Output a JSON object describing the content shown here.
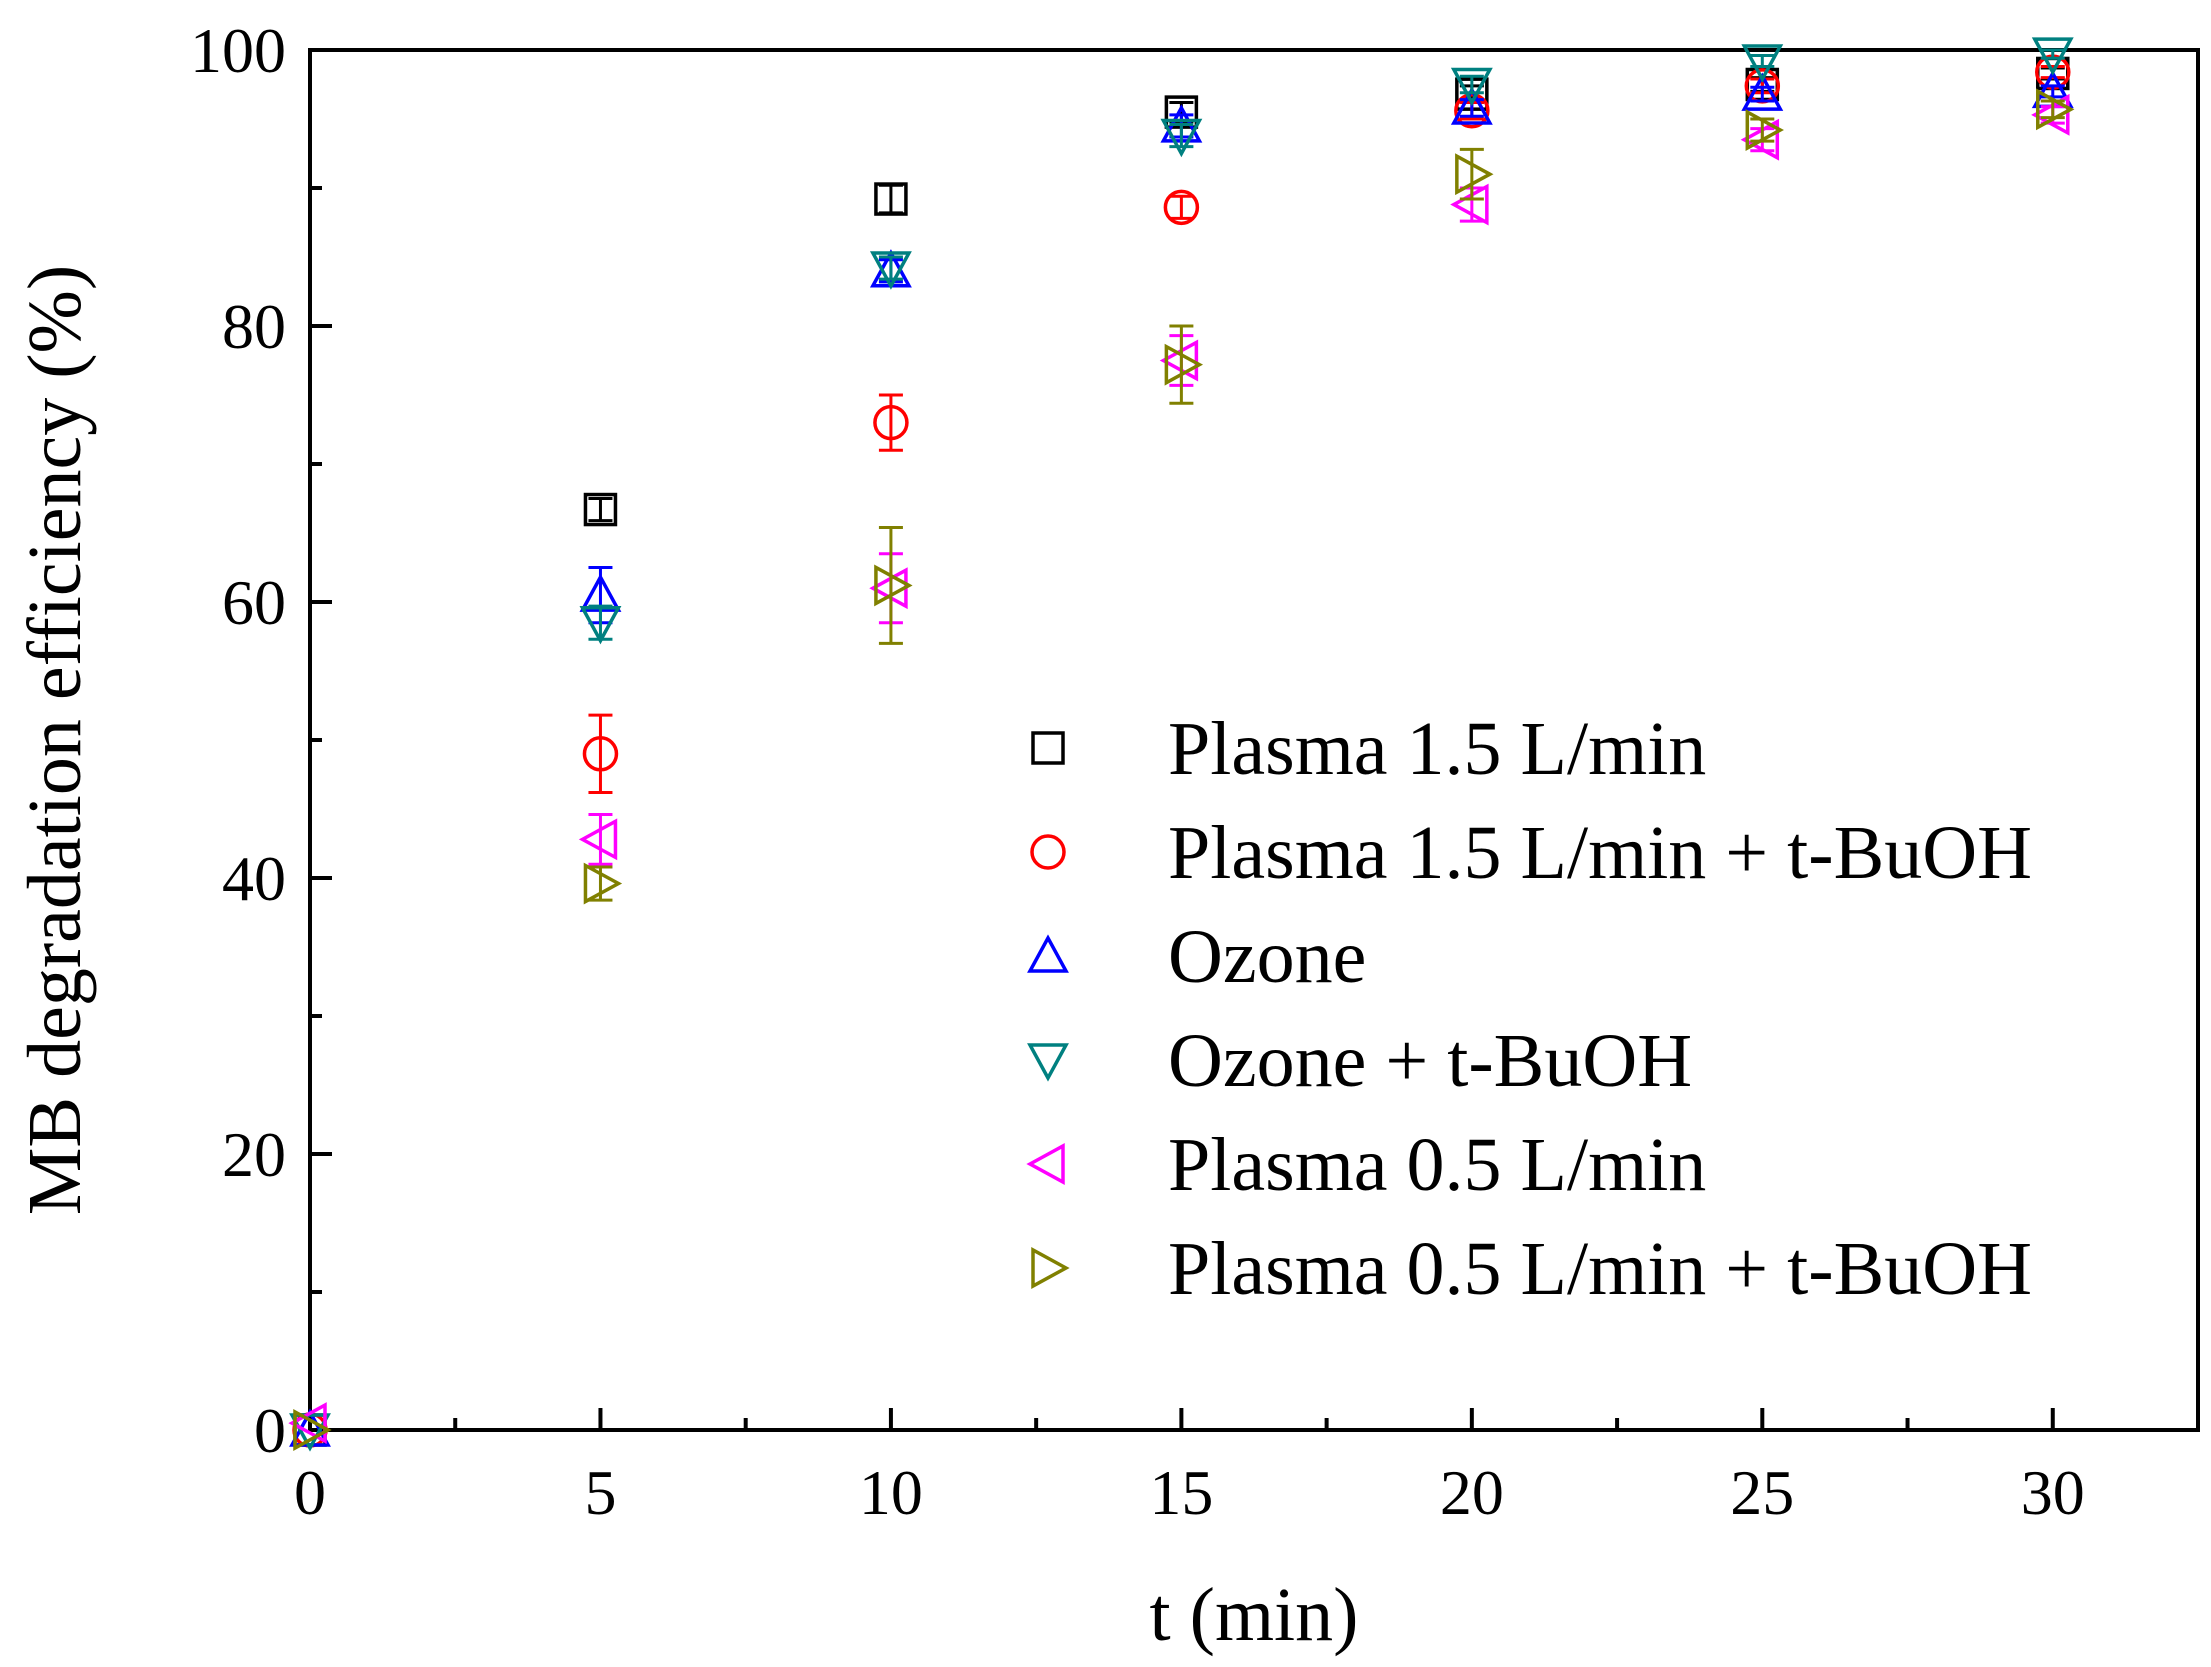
{
  "chart_data": {
    "type": "scatter",
    "title": "",
    "xlabel": "t (min)",
    "ylabel": "MB degradation efficiency (%)",
    "xlim": [
      0,
      32.5
    ],
    "ylim": [
      0,
      100
    ],
    "xticks": [
      0,
      5,
      10,
      15,
      20,
      25,
      30
    ],
    "yticks": [
      0,
      20,
      40,
      60,
      80,
      100
    ],
    "grid": false,
    "legend_position": "right-center",
    "x": [
      0,
      5,
      10,
      15,
      20,
      25,
      30
    ],
    "series": [
      {
        "name": "Plasma 1.5 L/min",
        "marker": "square",
        "color": "#000000",
        "values": [
          0,
          66.7,
          89.2,
          95.5,
          96.8,
          97.5,
          98.3
        ],
        "errors": [
          0,
          0.8,
          1.0,
          0.7,
          0.6,
          0.5,
          0.4
        ]
      },
      {
        "name": "Plasma 1.5 L/min + t-BuOH",
        "marker": "circle",
        "color": "#ff0000",
        "values": [
          0,
          49.0,
          73.0,
          88.6,
          95.6,
          97.4,
          98.4
        ],
        "errors": [
          0,
          2.8,
          2.0,
          0.8,
          0.6,
          0.5,
          0.4
        ]
      },
      {
        "name": "Ozone",
        "marker": "triangle-up",
        "color": "#0000ff",
        "values": [
          0,
          60.5,
          84.0,
          94.5,
          95.8,
          96.8,
          97.0
        ],
        "errors": [
          0,
          2.0,
          0.8,
          0.8,
          0.6,
          0.5,
          0.4
        ]
      },
      {
        "name": "Ozone + t-BuOH",
        "marker": "triangle-down",
        "color": "#008080",
        "values": [
          0,
          58.5,
          84.2,
          93.8,
          97.5,
          99.2,
          99.7
        ],
        "errors": [
          0,
          1.2,
          0.8,
          0.8,
          0.6,
          0.4,
          0.3
        ]
      },
      {
        "name": "Plasma 0.5 L/min",
        "marker": "triangle-left",
        "color": "#ff00ff",
        "values": [
          0.5,
          42.8,
          61.0,
          77.5,
          88.8,
          93.5,
          95.3
        ],
        "errors": [
          0,
          1.8,
          2.5,
          1.8,
          1.2,
          0.8,
          0.6
        ]
      },
      {
        "name": "Plasma 0.5 L/min + t-BuOH",
        "marker": "triangle-right",
        "color": "#808000",
        "values": [
          0,
          39.6,
          61.2,
          77.2,
          91.0,
          94.2,
          95.7
        ],
        "errors": [
          0,
          1.2,
          4.2,
          2.8,
          1.8,
          0.8,
          0.6
        ]
      }
    ]
  }
}
